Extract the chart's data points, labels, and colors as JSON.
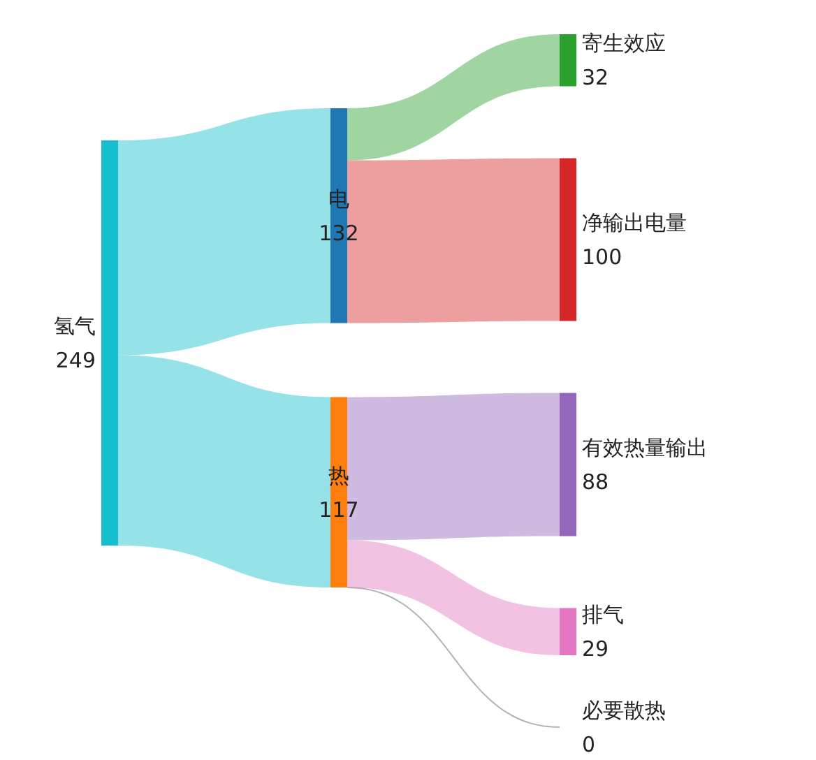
{
  "chart_data": {
    "type": "other",
    "categories": [
      "氢气",
      "电",
      "热",
      "寄生效应",
      "净输出电量",
      "有效热量输出",
      "排气",
      "必要散热"
    ],
    "values": [
      249,
      132,
      117,
      32,
      100,
      88,
      29,
      0
    ],
    "colors": [
      "#17becf",
      "#1f77b4",
      "#ff7f0e",
      "#2ca02c",
      "#d62728",
      "#9467bd",
      "#e377c2",
      "#7f7f7f"
    ],
    "data_labels": true
  }
}
